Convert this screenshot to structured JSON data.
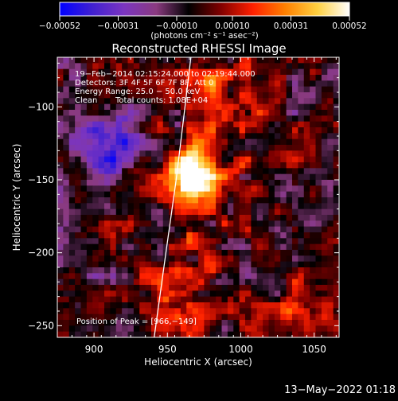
{
  "chart_data": {
    "type": "heatmap",
    "title": "Reconstructed RHESSI Image",
    "xlabel": "Heliocentric X (arcsec)",
    "ylabel": "Heliocentric Y (arcsec)",
    "xlim": [
      875,
      1067
    ],
    "ylim": [
      -258,
      -66
    ],
    "x_ticks": [
      900,
      950,
      1000,
      1050
    ],
    "y_ticks": [
      -100,
      -150,
      -200,
      -250
    ],
    "x_tick_labels": [
      "900",
      "950",
      "1000",
      "1050"
    ],
    "y_tick_labels": [
      "−100",
      "−150",
      "−200",
      "−250"
    ],
    "colorbar": {
      "range": [
        -0.00052,
        0.00052
      ],
      "ticks": [
        -0.00052,
        -0.00031,
        -0.0001,
        0.0001,
        0.00031,
        0.00052
      ],
      "tick_labels": [
        "−0.00052",
        "−0.00031",
        "−0.00010",
        "0.00010",
        "0.00031",
        "0.00052"
      ],
      "unit_label": "(photons cm⁻² s⁻¹ asec⁻²)",
      "colors": [
        "#0000ff",
        "#4020d0",
        "#7b35c0",
        "#8a3a80",
        "#000000",
        "#800000",
        "#ff2000",
        "#ff8000",
        "#ffd040",
        "#ffffff"
      ]
    },
    "annotations": {
      "time_range": "19−Feb−2014 02:15:24.000 to 02:19:44.000",
      "detectors": "Detectors: 3F 4F 5F 6F 7F 8F, Att 0",
      "energy_range": "Energy Range: 25.0 − 50.0 keV",
      "method": "Clean",
      "total_counts": "Total counts: 1.08E+04",
      "peak": "Position of Peak = [966,−149]"
    },
    "peak": [
      966,
      -149
    ],
    "limb_line": [
      [
        941,
        -258
      ],
      [
        949,
        -200
      ],
      [
        956,
        -150
      ],
      [
        962,
        -100
      ],
      [
        966,
        -66
      ]
    ]
  },
  "footer": {
    "timestamp": "13−May−2022 01:18"
  }
}
